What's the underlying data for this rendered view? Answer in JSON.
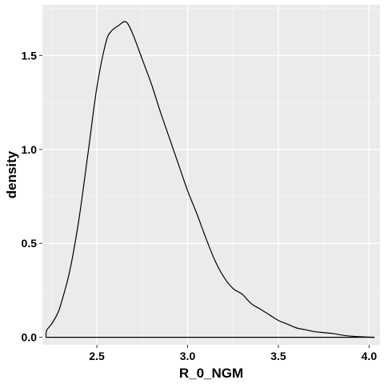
{
  "chart_data": {
    "type": "line",
    "title": "",
    "xlabel": "R_0_NGM",
    "ylabel": "density",
    "xlim": [
      2.2,
      4.06
    ],
    "ylim": [
      -0.04,
      1.77
    ],
    "xticks": [
      2.5,
      3.0,
      3.5,
      4.0
    ],
    "xtick_labels": [
      "2.5",
      "3.0",
      "3.5",
      "4.0"
    ],
    "yticks": [
      0.0,
      0.5,
      1.0,
      1.5
    ],
    "ytick_labels": [
      "0.0",
      "0.5",
      "1.0",
      "1.5"
    ],
    "grid": true,
    "legend": "none",
    "colors": {
      "panel": "#ebebeb",
      "grid_major": "#ffffff",
      "grid_minor": "#f5f5f5",
      "line": "#000000"
    },
    "series": [
      {
        "x": [
          2.22,
          2.225,
          2.25,
          2.28,
          2.3,
          2.35,
          2.4,
          2.45,
          2.5,
          2.55,
          2.58,
          2.62,
          2.65,
          2.67,
          2.7,
          2.75,
          2.8,
          2.85,
          2.9,
          2.95,
          3.0,
          3.05,
          3.1,
          3.15,
          3.2,
          3.25,
          3.3,
          3.35,
          3.4,
          3.45,
          3.5,
          3.55,
          3.6,
          3.65,
          3.7,
          3.75,
          3.8,
          3.85,
          3.9,
          3.95,
          4.0,
          4.03
        ],
        "y": [
          0.02,
          0.04,
          0.07,
          0.12,
          0.17,
          0.35,
          0.62,
          0.97,
          1.33,
          1.57,
          1.63,
          1.66,
          1.68,
          1.67,
          1.61,
          1.48,
          1.35,
          1.2,
          1.06,
          0.92,
          0.78,
          0.66,
          0.53,
          0.41,
          0.32,
          0.26,
          0.23,
          0.18,
          0.15,
          0.12,
          0.09,
          0.07,
          0.05,
          0.04,
          0.03,
          0.025,
          0.02,
          0.012,
          0.006,
          0.003,
          0.001,
          0.0
        ]
      }
    ]
  }
}
